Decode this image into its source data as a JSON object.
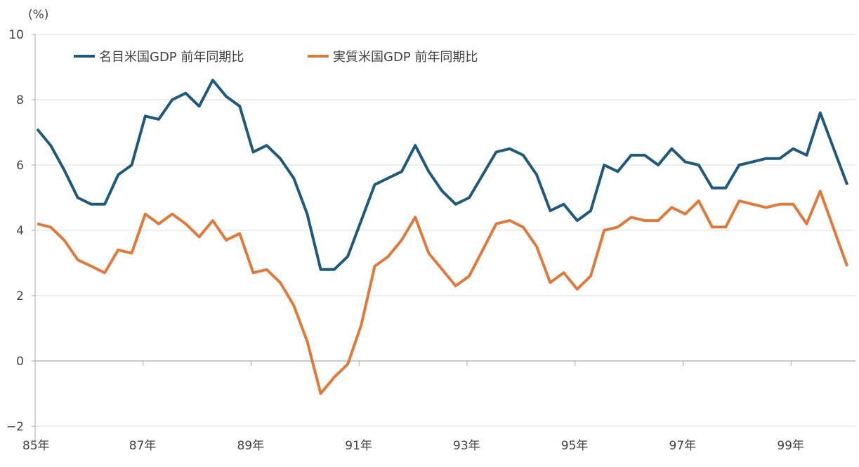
{
  "chart_data": {
    "type": "line",
    "unit_label": "(%)",
    "ylim": [
      -2,
      10
    ],
    "yticks": [
      -2,
      0,
      2,
      4,
      6,
      8,
      10
    ],
    "xtick_labels": [
      "85年",
      "87年",
      "89年",
      "91年",
      "93年",
      "95年",
      "97年",
      "99年"
    ],
    "x_range": [
      "1985Q1",
      "2000Q1"
    ],
    "frequency": "quarterly",
    "grid": true,
    "legend_position": "top-left",
    "series": [
      {
        "name": "名目米国GDP 前年同期比",
        "color": "#1f5a7a",
        "values": [
          7.1,
          6.6,
          5.85,
          5.0,
          4.8,
          4.8,
          5.7,
          6.0,
          7.5,
          7.4,
          8.0,
          8.2,
          7.8,
          8.6,
          8.1,
          7.8,
          6.4,
          6.6,
          6.2,
          5.6,
          4.5,
          2.8,
          2.8,
          3.2,
          4.3,
          5.4,
          5.6,
          5.8,
          6.6,
          5.8,
          5.2,
          4.8,
          5.0,
          5.7,
          6.4,
          6.5,
          6.3,
          5.7,
          4.6,
          4.8,
          4.3,
          4.6,
          6.0,
          5.8,
          6.3,
          6.3,
          6.0,
          6.5,
          6.1,
          6.0,
          5.3,
          5.3,
          6.0,
          6.1,
          6.2,
          6.2,
          6.5,
          6.3,
          7.6,
          6.5,
          5.4
        ]
      },
      {
        "name": "実質米国GDP 前年同期比",
        "color": "#e07a3c",
        "values": [
          4.2,
          4.1,
          3.7,
          3.1,
          2.9,
          2.7,
          3.4,
          3.3,
          4.5,
          4.2,
          4.5,
          4.2,
          3.8,
          4.3,
          3.7,
          3.9,
          2.7,
          2.8,
          2.4,
          1.7,
          0.6,
          -1.0,
          -0.5,
          -0.1,
          1.1,
          2.9,
          3.2,
          3.7,
          4.4,
          3.3,
          2.8,
          2.3,
          2.6,
          3.4,
          4.2,
          4.3,
          4.1,
          3.5,
          2.4,
          2.7,
          2.2,
          2.6,
          4.0,
          4.1,
          4.4,
          4.3,
          4.3,
          4.7,
          4.5,
          4.9,
          4.1,
          4.1,
          4.9,
          4.8,
          4.7,
          4.8,
          4.8,
          4.2,
          5.2,
          4.05,
          2.9
        ]
      }
    ]
  }
}
